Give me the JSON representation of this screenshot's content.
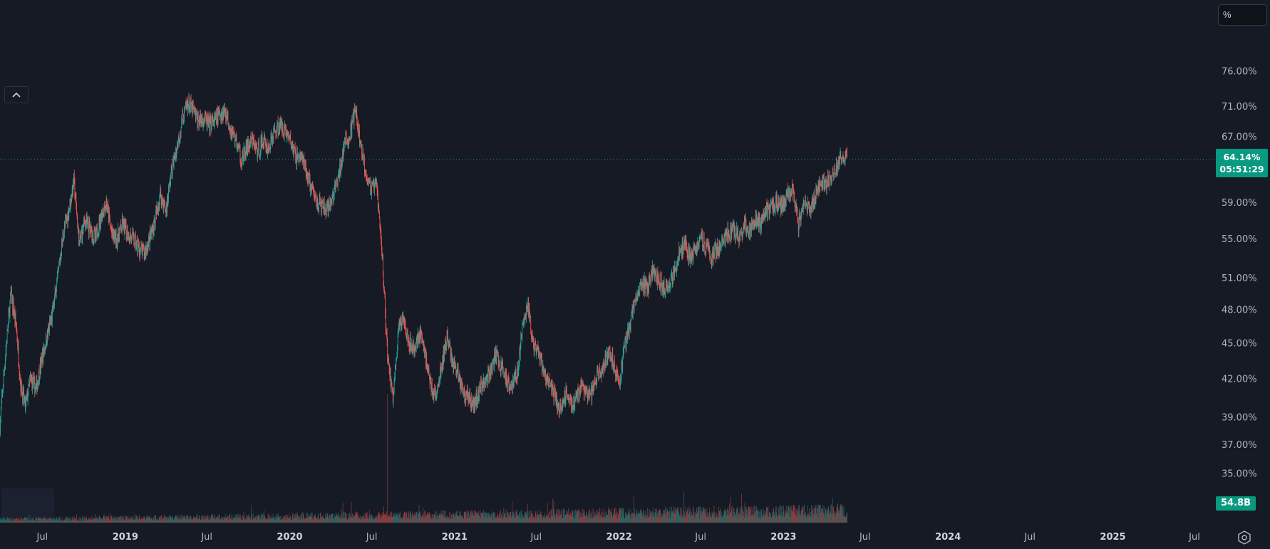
{
  "unit_selector": {
    "label": "%"
  },
  "collapse_button": {
    "icon": "chevron-up-icon"
  },
  "settings": {
    "icon": "gear-icon"
  },
  "colors": {
    "up": "#26a69a",
    "down": "#ef5350",
    "background": "#161a25",
    "badge": "#089981"
  },
  "price_badge": {
    "value": "64.14%",
    "countdown": "05:51:29"
  },
  "volume_badge": {
    "value": "54.8B"
  },
  "chart_data": {
    "type": "candlestick",
    "y_scale": "log",
    "ylim": [
      33.5,
      79
    ],
    "xlim": [
      "2018-03-29",
      "2025-08-08"
    ],
    "y_ticks": [
      {
        "value": 76,
        "label": "76.00%"
      },
      {
        "value": 71,
        "label": "71.00%"
      },
      {
        "value": 67,
        "label": "67.00%"
      },
      {
        "value": 59,
        "label": "59.00%"
      },
      {
        "value": 55,
        "label": "55.00%"
      },
      {
        "value": 51,
        "label": "51.00%"
      },
      {
        "value": 48,
        "label": "48.00%"
      },
      {
        "value": 45,
        "label": "45.00%"
      },
      {
        "value": 42,
        "label": "42.00%"
      },
      {
        "value": 39,
        "label": "39.00%"
      },
      {
        "value": 37,
        "label": "37.00%"
      },
      {
        "value": 35,
        "label": "35.00%"
      }
    ],
    "x_ticks": [
      {
        "date": "2018-07-01",
        "label": "Jul",
        "bold": false
      },
      {
        "date": "2019-01-01",
        "label": "2019",
        "bold": true
      },
      {
        "date": "2019-07-01",
        "label": "Jul",
        "bold": false
      },
      {
        "date": "2020-01-01",
        "label": "2020",
        "bold": true
      },
      {
        "date": "2020-07-01",
        "label": "Jul",
        "bold": false
      },
      {
        "date": "2021-01-01",
        "label": "2021",
        "bold": true
      },
      {
        "date": "2021-07-01",
        "label": "Jul",
        "bold": false
      },
      {
        "date": "2022-01-01",
        "label": "2022",
        "bold": true
      },
      {
        "date": "2022-07-01",
        "label": "Jul",
        "bold": false
      },
      {
        "date": "2023-01-01",
        "label": "2023",
        "bold": true
      },
      {
        "date": "2023-07-01",
        "label": "Jul",
        "bold": false
      },
      {
        "date": "2024-01-01",
        "label": "2024",
        "bold": true
      },
      {
        "date": "2024-07-01",
        "label": "Jul",
        "bold": false
      },
      {
        "date": "2025-01-01",
        "label": "2025",
        "bold": true
      },
      {
        "date": "2025-07-01",
        "label": "Jul",
        "bold": false
      }
    ],
    "last_price": 64.14,
    "price_path": [
      [
        "2018-03-29",
        38.5
      ],
      [
        "2018-04-10",
        44.0
      ],
      [
        "2018-04-22",
        49.5
      ],
      [
        "2018-05-04",
        46.5
      ],
      [
        "2018-05-14",
        41.5
      ],
      [
        "2018-05-24",
        39.8
      ],
      [
        "2018-06-05",
        42.0
      ],
      [
        "2018-06-17",
        41.2
      ],
      [
        "2018-06-29",
        43.5
      ],
      [
        "2018-07-11",
        45.5
      ],
      [
        "2018-07-23",
        47.5
      ],
      [
        "2018-08-04",
        51.0
      ],
      [
        "2018-08-16",
        55.5
      ],
      [
        "2018-08-28",
        58.0
      ],
      [
        "2018-09-09",
        61.5
      ],
      [
        "2018-09-21",
        54.5
      ],
      [
        "2018-10-03",
        57.0
      ],
      [
        "2018-10-15",
        56.0
      ],
      [
        "2018-10-27",
        55.0
      ],
      [
        "2018-11-08",
        57.5
      ],
      [
        "2018-11-20",
        59.0
      ],
      [
        "2018-12-02",
        55.5
      ],
      [
        "2018-12-14",
        55.0
      ],
      [
        "2018-12-26",
        56.5
      ],
      [
        "2019-01-07",
        55.5
      ],
      [
        "2019-01-19",
        55.0
      ],
      [
        "2019-01-31",
        54.0
      ],
      [
        "2019-02-12",
        53.5
      ],
      [
        "2019-02-24",
        55.0
      ],
      [
        "2019-03-08",
        57.0
      ],
      [
        "2019-03-20",
        60.0
      ],
      [
        "2019-04-01",
        58.0
      ],
      [
        "2019-04-13",
        62.5
      ],
      [
        "2019-04-25",
        65.5
      ],
      [
        "2019-05-07",
        69.0
      ],
      [
        "2019-05-19",
        71.5
      ],
      [
        "2019-05-31",
        70.5
      ],
      [
        "2019-06-12",
        69.0
      ],
      [
        "2019-06-24",
        69.5
      ],
      [
        "2019-07-06",
        68.5
      ],
      [
        "2019-07-18",
        69.0
      ],
      [
        "2019-07-30",
        70.0
      ],
      [
        "2019-08-11",
        70.5
      ],
      [
        "2019-08-23",
        68.0
      ],
      [
        "2019-09-04",
        66.5
      ],
      [
        "2019-09-16",
        64.0
      ],
      [
        "2019-09-28",
        65.5
      ],
      [
        "2019-10-10",
        66.5
      ],
      [
        "2019-10-22",
        65.0
      ],
      [
        "2019-11-03",
        66.5
      ],
      [
        "2019-11-15",
        65.5
      ],
      [
        "2019-11-27",
        67.5
      ],
      [
        "2019-12-09",
        68.5
      ],
      [
        "2019-12-21",
        68.0
      ],
      [
        "2020-01-02",
        66.5
      ],
      [
        "2020-01-14",
        64.5
      ],
      [
        "2020-01-26",
        64.5
      ],
      [
        "2020-02-07",
        62.5
      ],
      [
        "2020-02-19",
        60.5
      ],
      [
        "2020-03-02",
        59.0
      ],
      [
        "2020-03-14",
        58.5
      ],
      [
        "2020-03-26",
        58.0
      ],
      [
        "2020-04-07",
        60.0
      ],
      [
        "2020-04-19",
        62.0
      ],
      [
        "2020-05-01",
        66.0
      ],
      [
        "2020-05-13",
        67.0
      ],
      [
        "2020-05-25",
        70.5
      ],
      [
        "2020-06-06",
        66.0
      ],
      [
        "2020-06-18",
        62.5
      ],
      [
        "2020-06-30",
        60.5
      ],
      [
        "2020-07-12",
        61.0
      ],
      [
        "2020-07-24",
        53.5
      ],
      [
        "2020-08-05",
        44.0
      ],
      [
        "2020-08-17",
        40.5
      ],
      [
        "2020-08-29",
        46.0
      ],
      [
        "2020-09-10",
        47.5
      ],
      [
        "2020-09-22",
        45.0
      ],
      [
        "2020-10-04",
        44.5
      ],
      [
        "2020-10-16",
        46.0
      ],
      [
        "2020-10-28",
        44.0
      ],
      [
        "2020-11-09",
        41.5
      ],
      [
        "2020-11-21",
        40.5
      ],
      [
        "2020-12-03",
        43.0
      ],
      [
        "2020-12-15",
        45.5
      ],
      [
        "2020-12-27",
        43.5
      ],
      [
        "2021-01-08",
        42.5
      ],
      [
        "2021-01-20",
        41.0
      ],
      [
        "2021-02-01",
        40.5
      ],
      [
        "2021-02-13",
        40.0
      ],
      [
        "2021-02-25",
        41.0
      ],
      [
        "2021-03-09",
        42.0
      ],
      [
        "2021-03-21",
        42.5
      ],
      [
        "2021-04-02",
        44.0
      ],
      [
        "2021-04-14",
        43.0
      ],
      [
        "2021-04-26",
        42.0
      ],
      [
        "2021-05-08",
        41.5
      ],
      [
        "2021-05-20",
        42.5
      ],
      [
        "2021-06-01",
        46.5
      ],
      [
        "2021-06-13",
        48.5
      ],
      [
        "2021-06-25",
        44.5
      ],
      [
        "2021-07-07",
        44.0
      ],
      [
        "2021-07-19",
        42.5
      ],
      [
        "2021-07-31",
        41.5
      ],
      [
        "2021-08-12",
        40.5
      ],
      [
        "2021-08-24",
        39.5
      ],
      [
        "2021-09-05",
        41.0
      ],
      [
        "2021-09-17",
        40.0
      ],
      [
        "2021-09-29",
        40.5
      ],
      [
        "2021-10-11",
        41.5
      ],
      [
        "2021-10-23",
        40.5
      ],
      [
        "2021-11-04",
        41.0
      ],
      [
        "2021-11-16",
        42.5
      ],
      [
        "2021-11-28",
        43.0
      ],
      [
        "2021-12-10",
        44.5
      ],
      [
        "2021-12-22",
        43.0
      ],
      [
        "2022-01-03",
        42.0
      ],
      [
        "2022-01-15",
        45.0
      ],
      [
        "2022-01-27",
        47.0
      ],
      [
        "2022-02-08",
        49.0
      ],
      [
        "2022-02-20",
        50.5
      ],
      [
        "2022-03-04",
        50.0
      ],
      [
        "2022-03-16",
        51.5
      ],
      [
        "2022-03-28",
        51.0
      ],
      [
        "2022-04-09",
        50.0
      ],
      [
        "2022-04-21",
        50.5
      ],
      [
        "2022-05-03",
        51.5
      ],
      [
        "2022-05-15",
        53.5
      ],
      [
        "2022-05-27",
        54.5
      ],
      [
        "2022-06-08",
        53.0
      ],
      [
        "2022-06-20",
        54.0
      ],
      [
        "2022-07-02",
        55.5
      ],
      [
        "2022-07-14",
        54.0
      ],
      [
        "2022-07-26",
        53.0
      ],
      [
        "2022-08-07",
        54.0
      ],
      [
        "2022-08-19",
        55.0
      ],
      [
        "2022-08-31",
        55.5
      ],
      [
        "2022-09-12",
        56.0
      ],
      [
        "2022-09-24",
        55.0
      ],
      [
        "2022-10-06",
        56.5
      ],
      [
        "2022-10-18",
        56.0
      ],
      [
        "2022-10-30",
        57.0
      ],
      [
        "2022-11-11",
        56.5
      ],
      [
        "2022-11-23",
        58.0
      ],
      [
        "2022-12-05",
        58.5
      ],
      [
        "2022-12-17",
        59.0
      ],
      [
        "2022-12-29",
        58.5
      ],
      [
        "2023-01-10",
        60.0
      ],
      [
        "2023-01-22",
        61.0
      ],
      [
        "2023-02-03",
        56.5
      ],
      [
        "2023-02-15",
        59.0
      ],
      [
        "2023-02-27",
        58.0
      ],
      [
        "2023-03-11",
        59.5
      ],
      [
        "2023-03-23",
        61.5
      ],
      [
        "2023-04-04",
        61.0
      ],
      [
        "2023-04-16",
        62.0
      ],
      [
        "2023-04-28",
        63.0
      ],
      [
        "2023-05-10",
        64.5
      ],
      [
        "2023-05-22",
        64.14
      ]
    ],
    "volume": {
      "last": 54.8,
      "unit": "B",
      "spike_date": "2020-08-05",
      "spike": 130
    }
  }
}
